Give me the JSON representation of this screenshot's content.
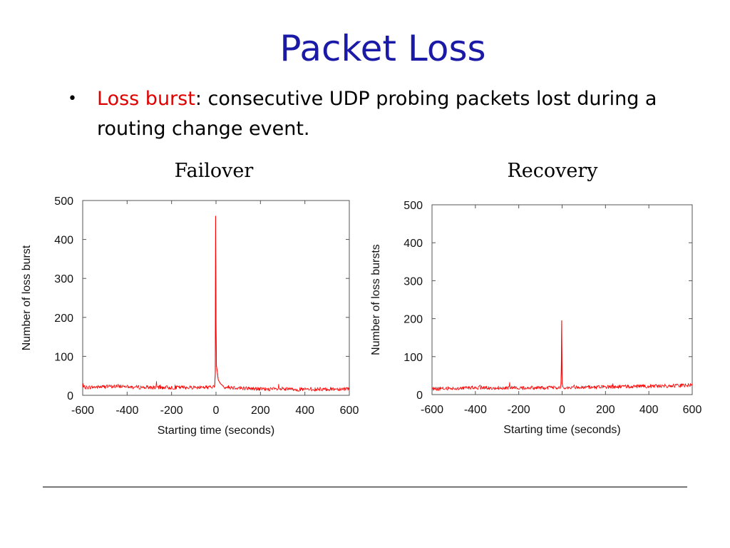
{
  "slide": {
    "title": "Packet Loss",
    "bullet": {
      "term": "Loss burst",
      "text": ": consecutive UDP probing packets lost during a routing change event."
    }
  },
  "colors": {
    "title": "#1a1aa6",
    "term": "#e00000",
    "series": "#ff0000"
  },
  "chart_data": [
    {
      "type": "line",
      "title": "Failover",
      "xlabel": "Starting time (seconds)",
      "ylabel": "Number of loss burst",
      "xlim": [
        -600,
        600
      ],
      "ylim": [
        0,
        500
      ],
      "xticks": [
        -600,
        -400,
        -200,
        0,
        200,
        400,
        600
      ],
      "yticks": [
        0,
        100,
        200,
        300,
        400,
        500
      ],
      "series": [
        {
          "baseline": [
            [
              -600,
              20
            ],
            [
              -400,
              24
            ],
            [
              -380,
              21
            ],
            [
              -200,
              20
            ],
            [
              -20,
              21
            ],
            [
              0,
              22
            ],
            [
              20,
              22
            ],
            [
              200,
              16
            ],
            [
              400,
              15
            ],
            [
              600,
              17
            ]
          ],
          "spike": [
            [
              -6,
              22
            ],
            [
              -3,
              60
            ],
            [
              -2,
              460
            ],
            [
              -1,
              340
            ],
            [
              0,
              190
            ],
            [
              2,
              75
            ],
            [
              6,
              60
            ],
            [
              10,
              40
            ],
            [
              20,
              30
            ],
            [
              30,
              25
            ]
          ]
        }
      ]
    },
    {
      "type": "line",
      "title": "Recovery",
      "xlabel": "Starting time (seconds)",
      "ylabel": "Number of loss bursts",
      "xlim": [
        -600,
        600
      ],
      "ylim": [
        0,
        500
      ],
      "xticks": [
        -600,
        -400,
        -200,
        0,
        200,
        400,
        600
      ],
      "yticks": [
        0,
        100,
        200,
        300,
        400,
        500
      ],
      "series": [
        {
          "baseline": [
            [
              -600,
              15
            ],
            [
              -400,
              18
            ],
            [
              -200,
              18
            ],
            [
              -20,
              18
            ],
            [
              0,
              18
            ],
            [
              200,
              20
            ],
            [
              400,
              22
            ],
            [
              600,
              25
            ]
          ],
          "spike": [
            [
              -6,
              20
            ],
            [
              -4,
              60
            ],
            [
              -2,
              195
            ],
            [
              0,
              30
            ],
            [
              4,
              20
            ]
          ]
        }
      ]
    }
  ]
}
